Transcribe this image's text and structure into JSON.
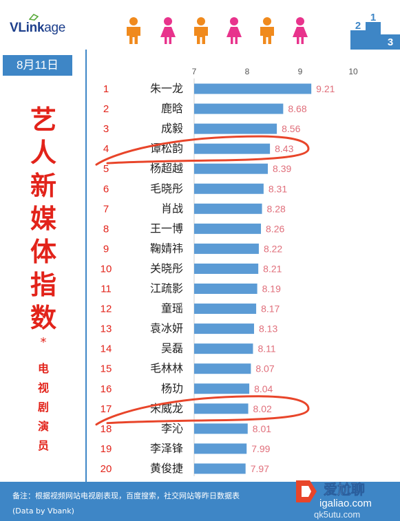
{
  "header": {
    "logo_bold": "VLink",
    "logo_rest": "age",
    "podium_labels": [
      "2",
      "1",
      "3"
    ]
  },
  "left_panel": {
    "date": "8月11日",
    "title_chars": [
      "艺",
      "人",
      "新",
      "媒",
      "体",
      "指",
      "数"
    ],
    "asterisk": "*",
    "subtitle_chars": [
      "电",
      "视",
      "剧",
      "演",
      "员"
    ]
  },
  "chart_data": {
    "type": "bar",
    "orientation": "horizontal",
    "xlim": [
      7,
      10
    ],
    "x_ticks": [
      "7",
      "8",
      "9",
      "10"
    ],
    "ranks": [
      "1",
      "2",
      "3",
      "4",
      "5",
      "6",
      "7",
      "8",
      "9",
      "10",
      "11",
      "12",
      "13",
      "14",
      "15",
      "16",
      "17",
      "18",
      "19",
      "20"
    ],
    "categories": [
      "朱一龙",
      "鹿晗",
      "成毅",
      "谭松韵",
      "杨超越",
      "毛晓彤",
      "肖战",
      "王一博",
      "鞠婧祎",
      "关晓彤",
      "江疏影",
      "童瑶",
      "袁冰妍",
      "吴磊",
      "毛林林",
      "杨玏",
      "宋威龙",
      "李沁",
      "李泽锋",
      "黄俊捷"
    ],
    "values": [
      9.21,
      8.68,
      8.56,
      8.43,
      8.39,
      8.31,
      8.28,
      8.26,
      8.22,
      8.21,
      8.19,
      8.17,
      8.13,
      8.11,
      8.07,
      8.04,
      8.02,
      8.01,
      7.99,
      7.97
    ],
    "value_labels": [
      "9.21",
      "8.68",
      "8.56",
      "8.43",
      "8.39",
      "8.31",
      "8.28",
      "8.26",
      "8.22",
      "8.21",
      "8.19",
      "8.17",
      "8.13",
      "8.11",
      "8.07",
      "8.04",
      "8.02",
      "8.01",
      "7.99",
      "7.97"
    ],
    "highlighted": [
      "谭松韵",
      "宋威龙"
    ],
    "bar_color": "#5b9bd5",
    "rank_color": "#e2231a",
    "value_label_color": "#e06e7a"
  },
  "footer": {
    "note": "备注：根据视频网站电视剧表现，百度搜索，社交网站等昨日数据表",
    "credit": "(Data by Vbank)"
  },
  "watermark": {
    "brand": "爱尬聊",
    "url": "igaliao.com",
    "secondary": "qk5utu.com"
  },
  "colors": {
    "accent_blue": "#3e86c6",
    "title_red": "#e2231a",
    "person_orange": "#f08a1d",
    "person_pink": "#e8338c"
  }
}
